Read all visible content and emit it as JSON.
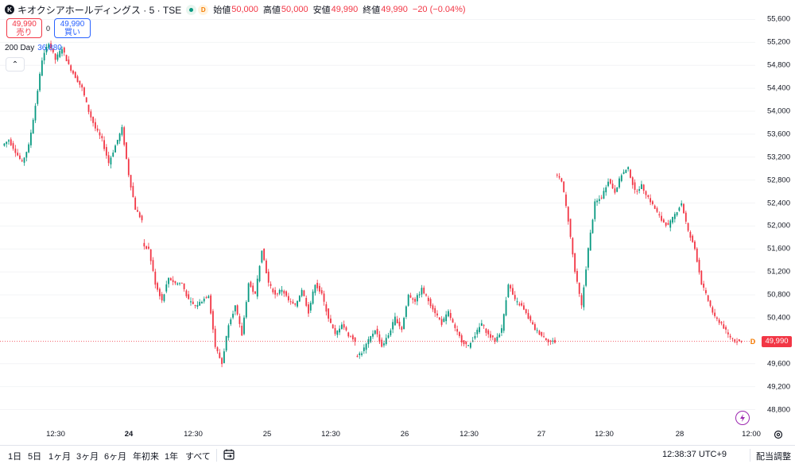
{
  "symbol": {
    "icon_label": "K",
    "title": "キオクシアホールディングス · 5 · TSE",
    "badge": "D"
  },
  "ohlc": {
    "open_label": "始値",
    "open": "50,000",
    "high_label": "高値",
    "high": "50,000",
    "low_label": "安値",
    "low": "49,990",
    "close_label": "終値",
    "close": "49,990",
    "change": "−20 (−0.04%)"
  },
  "trade": {
    "sell_price": "49,990",
    "sell_label": "売り",
    "spread": "0",
    "buy_price": "49,990",
    "buy_label": "買い"
  },
  "indicator": {
    "name": "200 Day",
    "value": "36,880"
  },
  "colors": {
    "up": "#089981",
    "down": "#f23645",
    "accent": "#2962ff"
  },
  "price_axis": [
    "55,600",
    "55,200",
    "54,800",
    "54,400",
    "54,000",
    "53,600",
    "53,200",
    "52,800",
    "52,400",
    "52,000",
    "51,600",
    "51,200",
    "50,800",
    "50,400",
    "49,990",
    "49,600",
    "49,200",
    "48,800"
  ],
  "last_price": "49,990",
  "time_axis": [
    {
      "label": "12:30",
      "day": false
    },
    {
      "label": "24",
      "day": true
    },
    {
      "label": "12:30",
      "day": false
    },
    {
      "label": "25",
      "day": false
    },
    {
      "label": "12:30",
      "day": false
    },
    {
      "label": "26",
      "day": false
    },
    {
      "label": "12:30",
      "day": false
    },
    {
      "label": "27",
      "day": false
    },
    {
      "label": "12:30",
      "day": false
    },
    {
      "label": "28",
      "day": false
    },
    {
      "label": "12:00",
      "day": false
    }
  ],
  "toolbar": {
    "timeframes": [
      "1日",
      "5日",
      "1ヶ月",
      "3ヶ月",
      "6ヶ月",
      "年初来",
      "1年",
      "すべて"
    ],
    "clock": "12:38:37 UTC+9",
    "adjust": "配当調整"
  },
  "chart_data": {
    "type": "candlestick",
    "interval": "5 minutes",
    "ylim": [
      48600,
      55800
    ],
    "last_close": 49990,
    "close_path": [
      {
        "date": "23",
        "values": [
          53500,
          53300,
          53100,
          53400,
          54100,
          54900,
          55200,
          54900,
          55100,
          54800,
          54600,
          54400,
          54000,
          53700,
          53500,
          53100,
          53400,
          53700,
          52900,
          52300,
          52100
        ]
      },
      {
        "date": "24",
        "values": [
          51600,
          51000,
          50700,
          51100,
          51000,
          51000,
          50700,
          50600,
          50700,
          50800,
          49900,
          49600,
          50300,
          50600,
          50100,
          51000,
          50800,
          51600,
          51000,
          50800,
          50900,
          50700,
          50600,
          50900,
          50500,
          51000,
          50800,
          50400,
          50100,
          50300,
          50100,
          50000
        ]
      },
      {
        "date": "25",
        "values": [
          49800,
          50000,
          50200,
          49900,
          50100,
          50400,
          50200,
          50800,
          50700,
          50900,
          50700,
          50500,
          50300,
          50500,
          50200,
          50000,
          49900,
          50100,
          50300,
          50100,
          50000,
          50200,
          51000,
          50700,
          50600,
          50400,
          50200,
          50100,
          50000,
          49980
        ]
      },
      {
        "date": "26",
        "values": [
          52800,
          52100,
          51200,
          50600,
          51600,
          52400,
          52500,
          52800,
          52600,
          52900,
          53000,
          52600,
          52700,
          52500,
          52300,
          52100,
          52000,
          52200,
          52400,
          51900,
          51600,
          51000,
          50700,
          50400,
          50300,
          50100,
          50000,
          49990
        ]
      }
    ]
  }
}
